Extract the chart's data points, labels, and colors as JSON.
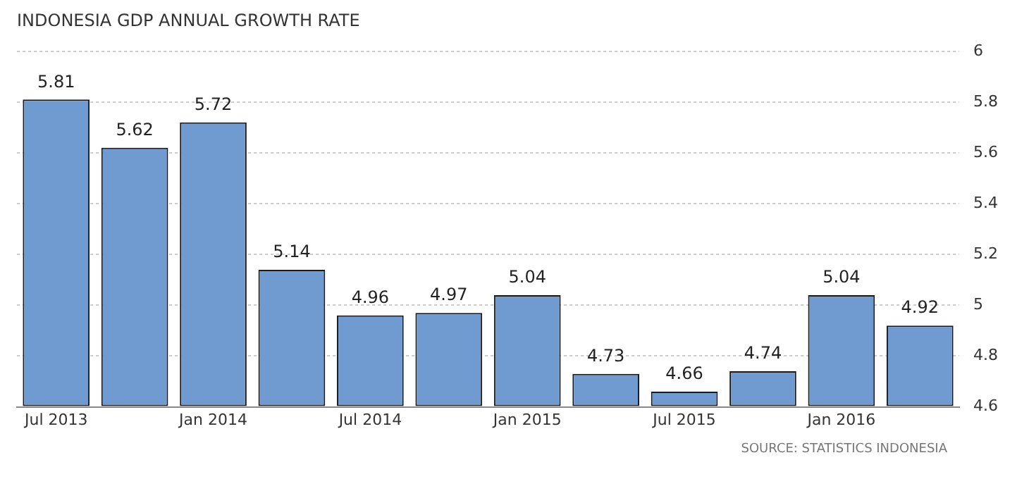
{
  "chart_data": {
    "type": "bar",
    "title": "INDONESIA GDP ANNUAL GROWTH RATE",
    "categories": [
      "Jul 2013",
      null,
      "Jan 2014",
      null,
      "Jul 2014",
      null,
      "Jan 2015",
      null,
      "Jul 2015",
      null,
      "Jan 2016",
      null
    ],
    "values": [
      5.81,
      5.62,
      5.72,
      5.14,
      4.96,
      4.97,
      5.04,
      4.73,
      4.66,
      4.74,
      5.04,
      4.92
    ],
    "color": "#6f9bd0",
    "ylim": [
      4.6,
      6
    ],
    "yticks": [
      4.6,
      4.8,
      5,
      5.2,
      5.4,
      5.6,
      5.8,
      6
    ],
    "grid": "y",
    "data_labels": true,
    "annotations": [
      "SOURCE: STATISTICS INDONESIA"
    ]
  }
}
